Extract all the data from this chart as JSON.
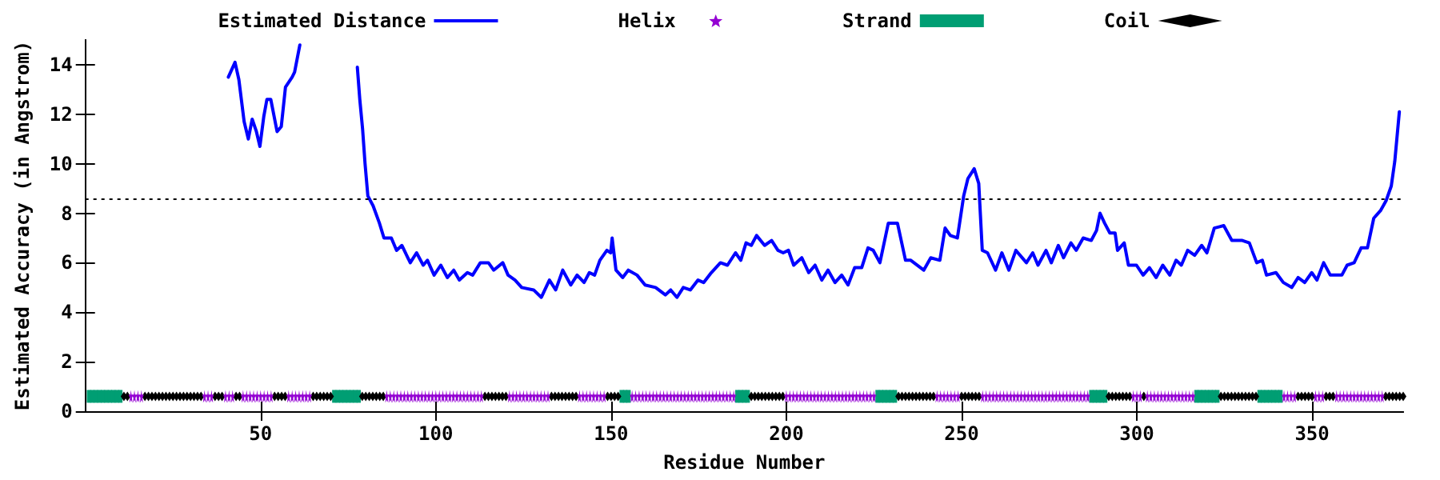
{
  "chart_data": {
    "type": "line",
    "xlabel": "Residue Number",
    "ylabel": "Estimated Accuracy (in Angstrom)",
    "xlim": [
      0,
      376
    ],
    "ylim": [
      0,
      15
    ],
    "xticks": [
      50,
      100,
      150,
      200,
      250,
      300,
      350
    ],
    "yticks": [
      0,
      2,
      4,
      6,
      8,
      10,
      12,
      14
    ],
    "grid": false,
    "legend": "top",
    "ref_lines": [
      {
        "axis": "y",
        "value": 8.6,
        "color": "#000000",
        "line_style": "dotted"
      }
    ],
    "series": [
      {
        "name": "Estimated Distance",
        "type": "line",
        "color": "#0000ff",
        "marker": "none",
        "line_style": "solid",
        "x": [
          40.8,
          42.7,
          43.8,
          45.3,
          46.5,
          47.6,
          48.8,
          49.8,
          50.9,
          51.8,
          52.9,
          54.7,
          55.9,
          57.1,
          59.0,
          59.7,
          61.2,
          68,
          77.6,
          78.3,
          79.1,
          79.8,
          80.6,
          82.1,
          83.9,
          85.2,
          87.3,
          88.8,
          90.3,
          92.7,
          94.5,
          96.4,
          97.6,
          99.5,
          101.4,
          103.3,
          105.1,
          106.7,
          109,
          110.5,
          112.7,
          115,
          116.5,
          119.1,
          120.6,
          122.6,
          124.5,
          127.9,
          130.1,
          132.4,
          134.2,
          136.2,
          138.5,
          140.3,
          142.3,
          143.8,
          145.3,
          146.8,
          148.8,
          149.9,
          150.3,
          151.4,
          153.3,
          154.9,
          157.4,
          159.7,
          162.7,
          165.5,
          167,
          168.8,
          170.6,
          172.6,
          174.8,
          176.4,
          178.6,
          181.2,
          183.2,
          185.5,
          187,
          188.5,
          190,
          191.5,
          193.8,
          195.8,
          197.6,
          199.1,
          200.6,
          202.1,
          204.4,
          206.4,
          208.2,
          210.1,
          211.9,
          213.9,
          215.8,
          217.6,
          219.5,
          221.5,
          223.3,
          224.8,
          226.7,
          229.1,
          231.7,
          234,
          235.5,
          239.2,
          241.2,
          243.8,
          245.3,
          246.8,
          248.8,
          250.6,
          251.8,
          253.6,
          254.9,
          255.9,
          257.4,
          259.7,
          261.5,
          263.5,
          265.5,
          268.5,
          270.3,
          271.8,
          274.1,
          275.6,
          277.6,
          279.1,
          281.2,
          282.7,
          284.7,
          287,
          288.5,
          289.5,
          290.8,
          292.3,
          293.8,
          294.5,
          296.4,
          297.6,
          299.9,
          301.8,
          303.6,
          305.5,
          307.4,
          309.4,
          311.2,
          312.7,
          314.5,
          316.5,
          318.5,
          320,
          322.1,
          324.8,
          327.1,
          330.1,
          332.1,
          334.2,
          335.8,
          337,
          339.7,
          341.8,
          344.2,
          346,
          347.9,
          349.9,
          351.4,
          353.3,
          355.2,
          358.5,
          360,
          362,
          364,
          365.8,
          367.6,
          369.5,
          371.1,
          372.6,
          373.6,
          374.9
        ],
        "values": [
          13.5,
          14.1,
          13.4,
          11.7,
          11.0,
          11.8,
          11.3,
          10.7,
          11.9,
          12.6,
          12.6,
          11.3,
          11.5,
          13.1,
          13.5,
          13.7,
          14.8,
          null,
          13.9,
          12.6,
          11.4,
          10.0,
          8.7,
          8.3,
          7.6,
          7.0,
          7.0,
          6.5,
          6.7,
          6.0,
          6.4,
          5.9,
          6.1,
          5.5,
          5.9,
          5.4,
          5.7,
          5.3,
          5.6,
          5.5,
          6.0,
          6.0,
          5.7,
          6.0,
          5.5,
          5.3,
          5.0,
          4.9,
          4.6,
          5.3,
          4.9,
          5.7,
          5.1,
          5.5,
          5.2,
          5.6,
          5.5,
          6.1,
          6.5,
          6.4,
          7.0,
          5.7,
          5.4,
          5.7,
          5.5,
          5.1,
          5.0,
          4.7,
          4.9,
          4.6,
          5.0,
          4.9,
          5.3,
          5.2,
          5.6,
          6.0,
          5.9,
          6.4,
          6.1,
          6.8,
          6.7,
          7.1,
          6.7,
          6.9,
          6.5,
          6.4,
          6.5,
          5.9,
          6.2,
          5.6,
          5.9,
          5.3,
          5.7,
          5.2,
          5.5,
          5.1,
          5.8,
          5.8,
          6.6,
          6.5,
          6.0,
          7.6,
          7.6,
          6.1,
          6.1,
          5.7,
          6.2,
          6.1,
          7.4,
          7.1,
          7.0,
          8.7,
          9.4,
          9.8,
          9.2,
          6.5,
          6.4,
          5.7,
          6.4,
          5.7,
          6.5,
          6.0,
          6.4,
          5.9,
          6.5,
          6.0,
          6.7,
          6.2,
          6.8,
          6.5,
          7.0,
          6.9,
          7.3,
          8.0,
          7.6,
          7.2,
          7.2,
          6.5,
          6.8,
          5.9,
          5.9,
          5.5,
          5.8,
          5.4,
          5.9,
          5.5,
          6.1,
          5.9,
          6.5,
          6.3,
          6.7,
          6.4,
          7.4,
          7.5,
          6.9,
          6.9,
          6.8,
          6.0,
          6.1,
          5.5,
          5.6,
          5.2,
          5.0,
          5.4,
          5.2,
          5.6,
          5.3,
          6.0,
          5.5,
          5.5,
          5.9,
          6.0,
          6.6,
          6.6,
          7.8,
          8.1,
          8.5,
          9.1,
          10.1,
          12.1
        ]
      },
      {
        "name": "Helix",
        "type": "scatter",
        "color": "#9400d3",
        "marker": "star",
        "x": [
          13,
          14,
          15,
          16,
          34,
          35,
          36,
          40,
          41,
          42,
          45,
          46,
          47,
          48,
          49,
          50,
          51,
          52,
          53,
          58,
          59,
          60,
          61,
          62,
          63,
          64,
          86,
          87,
          88,
          89,
          90,
          91,
          92,
          93,
          94,
          95,
          96,
          97,
          98,
          99,
          100,
          101,
          102,
          103,
          104,
          105,
          106,
          107,
          108,
          109,
          110,
          111,
          112,
          113,
          121,
          122,
          123,
          124,
          125,
          126,
          127,
          128,
          129,
          130,
          131,
          132,
          141,
          142,
          143,
          144,
          145,
          146,
          147,
          148,
          156,
          157,
          158,
          159,
          160,
          161,
          162,
          163,
          164,
          165,
          166,
          167,
          168,
          169,
          170,
          171,
          172,
          173,
          174,
          175,
          176,
          177,
          178,
          179,
          180,
          181,
          182,
          183,
          184,
          185,
          200,
          201,
          202,
          203,
          204,
          205,
          206,
          207,
          208,
          209,
          210,
          211,
          212,
          213,
          214,
          215,
          216,
          217,
          218,
          219,
          220,
          221,
          222,
          223,
          224,
          225,
          243,
          244,
          245,
          246,
          247,
          248,
          249,
          256,
          257,
          258,
          259,
          260,
          261,
          262,
          263,
          264,
          265,
          266,
          267,
          268,
          269,
          270,
          271,
          272,
          273,
          274,
          275,
          276,
          277,
          278,
          279,
          280,
          281,
          282,
          283,
          284,
          285,
          286,
          299,
          300,
          301,
          303,
          304,
          305,
          306,
          307,
          308,
          309,
          310,
          311,
          312,
          313,
          314,
          315,
          316,
          342,
          343,
          344,
          345,
          351,
          352,
          353,
          357,
          358,
          359,
          360,
          361,
          362,
          363,
          364,
          365,
          366,
          367,
          368,
          369,
          370
        ],
        "values": [
          0.6,
          0.6,
          0.6,
          0.6,
          0.6,
          0.6,
          0.6,
          0.6,
          0.6,
          0.6,
          0.6,
          0.6,
          0.6,
          0.6,
          0.6,
          0.6,
          0.6,
          0.6,
          0.6,
          0.6,
          0.6,
          0.6,
          0.6,
          0.6,
          0.6,
          0.6,
          0.6,
          0.6,
          0.6,
          0.6,
          0.6,
          0.6,
          0.6,
          0.6,
          0.6,
          0.6,
          0.6,
          0.6,
          0.6,
          0.6,
          0.6,
          0.6,
          0.6,
          0.6,
          0.6,
          0.6,
          0.6,
          0.6,
          0.6,
          0.6,
          0.6,
          0.6,
          0.6,
          0.6,
          0.6,
          0.6,
          0.6,
          0.6,
          0.6,
          0.6,
          0.6,
          0.6,
          0.6,
          0.6,
          0.6,
          0.6,
          0.6,
          0.6,
          0.6,
          0.6,
          0.6,
          0.6,
          0.6,
          0.6,
          0.6,
          0.6,
          0.6,
          0.6,
          0.6,
          0.6,
          0.6,
          0.6,
          0.6,
          0.6,
          0.6,
          0.6,
          0.6,
          0.6,
          0.6,
          0.6,
          0.6,
          0.6,
          0.6,
          0.6,
          0.6,
          0.6,
          0.6,
          0.6,
          0.6,
          0.6,
          0.6,
          0.6,
          0.6,
          0.6,
          0.6,
          0.6,
          0.6,
          0.6,
          0.6,
          0.6,
          0.6,
          0.6,
          0.6,
          0.6,
          0.6,
          0.6,
          0.6,
          0.6,
          0.6,
          0.6,
          0.6,
          0.6,
          0.6,
          0.6,
          0.6,
          0.6,
          0.6,
          0.6,
          0.6,
          0.6,
          0.6,
          0.6,
          0.6,
          0.6,
          0.6,
          0.6,
          0.6,
          0.6,
          0.6,
          0.6,
          0.6,
          0.6,
          0.6,
          0.6,
          0.6,
          0.6,
          0.6,
          0.6,
          0.6,
          0.6,
          0.6,
          0.6,
          0.6,
          0.6,
          0.6,
          0.6,
          0.6,
          0.6,
          0.6,
          0.6,
          0.6,
          0.6,
          0.6,
          0.6,
          0.6,
          0.6,
          0.6,
          0.6,
          0.6,
          0.6,
          0.6,
          0.6,
          0.6,
          0.6,
          0.6,
          0.6,
          0.6,
          0.6,
          0.6,
          0.6,
          0.6,
          0.6,
          0.6,
          0.6,
          0.6,
          0.6,
          0.6,
          0.6,
          0.6,
          0.6,
          0.6,
          0.6,
          0.6,
          0.6,
          0.6,
          0.6,
          0.6,
          0.6,
          0.6,
          0.6,
          0.6,
          0.6,
          0.6,
          0.6,
          0.6,
          0.6
        ]
      },
      {
        "name": "Strand",
        "type": "scatter",
        "color": "#009e73",
        "marker": "square",
        "x": [
          1,
          2,
          3,
          4,
          5,
          6,
          7,
          8,
          9,
          10,
          71,
          72,
          73,
          74,
          75,
          76,
          77,
          78,
          153,
          154,
          155,
          186,
          187,
          188,
          189,
          226,
          227,
          228,
          229,
          230,
          231,
          287,
          288,
          289,
          290,
          291,
          317,
          318,
          319,
          320,
          321,
          322,
          323,
          335,
          336,
          337,
          338,
          339,
          340,
          341
        ],
        "values": [
          0.6,
          0.6,
          0.6,
          0.6,
          0.6,
          0.6,
          0.6,
          0.6,
          0.6,
          0.6,
          0.6,
          0.6,
          0.6,
          0.6,
          0.6,
          0.6,
          0.6,
          0.6,
          0.6,
          0.6,
          0.6,
          0.6,
          0.6,
          0.6,
          0.6,
          0.6,
          0.6,
          0.6,
          0.6,
          0.6,
          0.6,
          0.6,
          0.6,
          0.6,
          0.6,
          0.6,
          0.6,
          0.6,
          0.6,
          0.6,
          0.6,
          0.6,
          0.6,
          0.6,
          0.6,
          0.6,
          0.6,
          0.6,
          0.6,
          0.6
        ]
      },
      {
        "name": "Coil",
        "type": "scatter",
        "color": "#000000",
        "marker": "diamond",
        "x": [
          11,
          12,
          17,
          18,
          19,
          20,
          21,
          22,
          23,
          24,
          25,
          26,
          27,
          28,
          29,
          30,
          31,
          32,
          33,
          37,
          38,
          39,
          43,
          44,
          54,
          55,
          56,
          57,
          65,
          66,
          67,
          68,
          69,
          70,
          79,
          80,
          81,
          82,
          83,
          84,
          85,
          114,
          115,
          116,
          117,
          118,
          119,
          120,
          133,
          134,
          135,
          136,
          137,
          138,
          139,
          140,
          149,
          150,
          151,
          152,
          190,
          191,
          192,
          193,
          194,
          195,
          196,
          197,
          198,
          199,
          232,
          233,
          234,
          235,
          236,
          237,
          238,
          239,
          240,
          241,
          242,
          250,
          251,
          252,
          253,
          254,
          255,
          292,
          293,
          294,
          295,
          296,
          297,
          298,
          302,
          324,
          325,
          326,
          327,
          328,
          329,
          330,
          331,
          332,
          333,
          334,
          346,
          347,
          348,
          349,
          350,
          354,
          355,
          356,
          371,
          372,
          373,
          374,
          375,
          376
        ],
        "values": [
          0.6,
          0.6,
          0.6,
          0.6,
          0.6,
          0.6,
          0.6,
          0.6,
          0.6,
          0.6,
          0.6,
          0.6,
          0.6,
          0.6,
          0.6,
          0.6,
          0.6,
          0.6,
          0.6,
          0.6,
          0.6,
          0.6,
          0.6,
          0.6,
          0.6,
          0.6,
          0.6,
          0.6,
          0.6,
          0.6,
          0.6,
          0.6,
          0.6,
          0.6,
          0.6,
          0.6,
          0.6,
          0.6,
          0.6,
          0.6,
          0.6,
          0.6,
          0.6,
          0.6,
          0.6,
          0.6,
          0.6,
          0.6,
          0.6,
          0.6,
          0.6,
          0.6,
          0.6,
          0.6,
          0.6,
          0.6,
          0.6,
          0.6,
          0.6,
          0.6,
          0.6,
          0.6,
          0.6,
          0.6,
          0.6,
          0.6,
          0.6,
          0.6,
          0.6,
          0.6,
          0.6,
          0.6,
          0.6,
          0.6,
          0.6,
          0.6,
          0.6,
          0.6,
          0.6,
          0.6,
          0.6,
          0.6,
          0.6,
          0.6,
          0.6,
          0.6,
          0.6,
          0.6,
          0.6,
          0.6,
          0.6,
          0.6,
          0.6,
          0.6,
          0.6,
          0.6,
          0.6,
          0.6,
          0.6,
          0.6,
          0.6,
          0.6,
          0.6,
          0.6,
          0.6,
          0.6,
          0.6,
          0.6,
          0.6,
          0.6,
          0.6,
          0.6,
          0.6,
          0.6,
          0.6,
          0.6,
          0.6,
          0.6,
          0.6,
          0.6
        ]
      }
    ]
  }
}
